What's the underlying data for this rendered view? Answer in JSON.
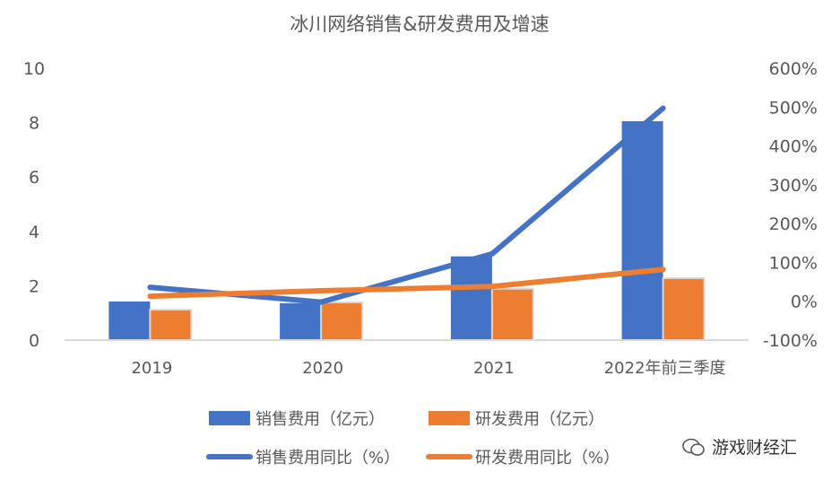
{
  "chart_data": {
    "type": "bar",
    "title": "冰川网络销售&研发费用及增速",
    "categories": [
      "2019",
      "2020",
      "2021",
      "2022年前三季度"
    ],
    "left_axis": {
      "ylim": [
        0,
        10
      ],
      "ticks": [
        "0",
        "2",
        "4",
        "6",
        "8",
        "10"
      ]
    },
    "right_axis": {
      "ylim": [
        -100,
        600
      ],
      "ticks": [
        "-100%",
        "0%",
        "100%",
        "200%",
        "300%",
        "400%",
        "500%",
        "600%"
      ]
    },
    "grid": false,
    "legend_position": "bottom",
    "series": [
      {
        "name": "销售费用（亿元）",
        "type": "bar",
        "axis": "left",
        "color": "#4472C4",
        "values": [
          1.42,
          1.36,
          3.08,
          8.05
        ]
      },
      {
        "name": "研发费用（亿元）",
        "type": "bar",
        "axis": "left",
        "color": "#ED7D31",
        "values": [
          1.12,
          1.39,
          1.89,
          2.28
        ]
      },
      {
        "name": "销售费用同比（%）",
        "type": "line",
        "axis": "right",
        "color": "#4472C4",
        "values": [
          36,
          -2,
          122,
          497
        ]
      },
      {
        "name": "研发费用同比（%）",
        "type": "line",
        "axis": "right",
        "color": "#ED7D31",
        "values": [
          13,
          27,
          38,
          82
        ]
      }
    ]
  },
  "watermark": {
    "text": "游戏财经汇",
    "icon": "wechat-icon"
  }
}
